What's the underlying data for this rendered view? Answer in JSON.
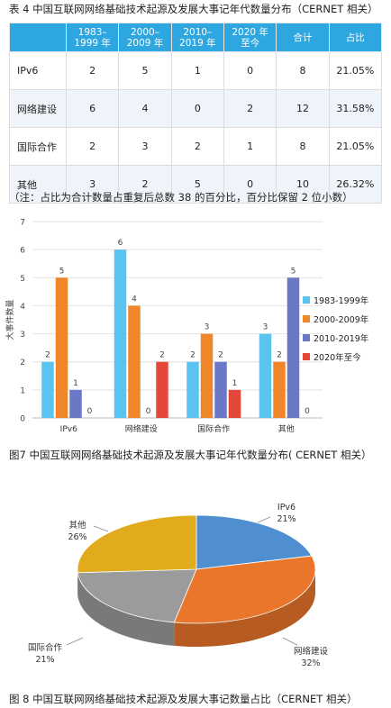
{
  "table": {
    "caption": "表 4  中国互联网网络基础技术起源及发展大事记年代数量分布（CERNET 相关）",
    "headers": [
      "",
      "1983–\n1999 年",
      "2000–\n2009 年",
      "2010–\n2019 年",
      "2020 年\n至今",
      "合计",
      "占比"
    ],
    "rows": [
      [
        "IPv6",
        "2",
        "5",
        "1",
        "0",
        "8",
        "21.05%"
      ],
      [
        "网络建设",
        "6",
        "4",
        "0",
        "2",
        "12",
        "31.58%"
      ],
      [
        "国际合作",
        "2",
        "3",
        "2",
        "1",
        "8",
        "21.05%"
      ],
      [
        "其他",
        "3",
        "2",
        "5",
        "0",
        "10",
        "26.32%"
      ]
    ],
    "header_color": "#2ea7e0",
    "stripe_color": "#eef4f9"
  },
  "note": "（注：占比为合计数量占重复后总数 38 的百分比，百分比保留 2 位小数）",
  "figure7": {
    "caption": "图7  中国互联网网络基础技术起源及发展大事记年代数量分布( CERNET 相关）"
  },
  "figure8": {
    "caption": "图 8  中国互联网网络基础技术起源及发展大事记数量占比（CERNET 相关）"
  },
  "chart_data": [
    {
      "type": "bar",
      "title": "",
      "xlabel": "",
      "ylabel": "大事件数量",
      "categories": [
        "IPv6",
        "网络建设",
        "国际合作",
        "其他"
      ],
      "ylim": [
        0,
        7
      ],
      "yticks": [
        "0",
        "1",
        "2",
        "3",
        "4",
        "5",
        "6",
        "7"
      ],
      "grid": true,
      "legend_position": "right",
      "series": [
        {
          "name": "1983-1999年",
          "values": [
            2,
            6,
            2,
            3
          ],
          "color": "#5bc3ef"
        },
        {
          "name": "2000-2009年",
          "values": [
            5,
            4,
            3,
            2
          ],
          "color": "#f0862a"
        },
        {
          "name": "2010-2019年",
          "values": [
            1,
            0,
            2,
            5
          ],
          "color": "#6b78c8"
        },
        {
          "name": "2020年至今",
          "values": [
            0,
            2,
            1,
            0
          ],
          "color": "#e5483a"
        }
      ]
    },
    {
      "type": "pie",
      "title": "",
      "labels": [
        "IPv6",
        "网络建设",
        "国际合作",
        "其他"
      ],
      "values": [
        21,
        32,
        21,
        26
      ],
      "value_labels": [
        "21%",
        "32%",
        "21%",
        "26%"
      ],
      "colors": [
        "#4f8fd0",
        "#e9762b",
        "#9b9b9b",
        "#e0ab1c"
      ],
      "style": "3d"
    }
  ]
}
